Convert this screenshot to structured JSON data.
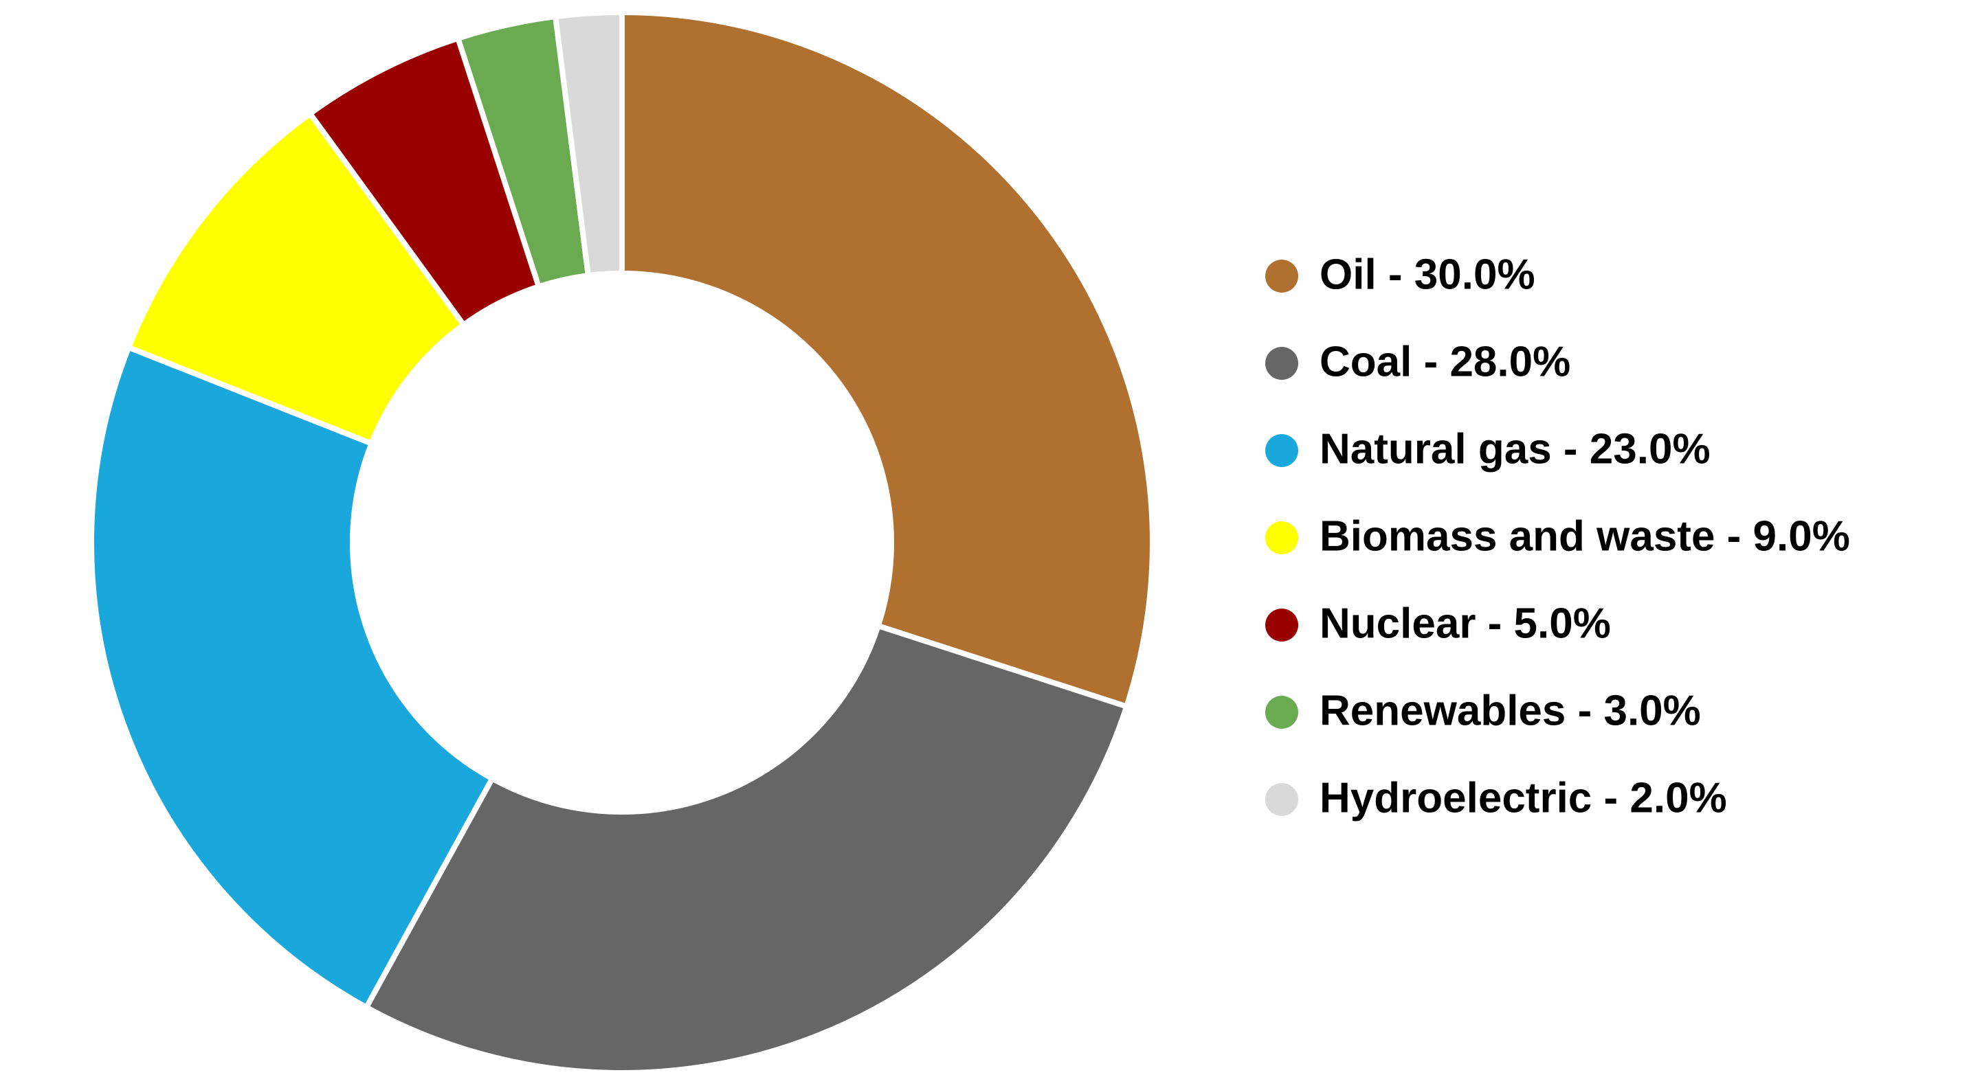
{
  "chart_data": {
    "type": "donut",
    "categories": [
      "Oil - 30.0%",
      "Coal - 28.0%",
      "Natural gas - 23.0%",
      "Biomass and waste - 9.0%",
      "Nuclear - 5.0%",
      "Renewables - 3.0%",
      "Hydroelectric - 2.0%"
    ],
    "values": [
      30,
      28,
      23,
      9,
      5,
      3,
      2
    ],
    "colors": [
      "#b07030",
      "#666666",
      "#1aa7dc",
      "#ffff00",
      "#990000",
      "#6aaa50",
      "#d9d9d9"
    ],
    "legend": "right"
  }
}
